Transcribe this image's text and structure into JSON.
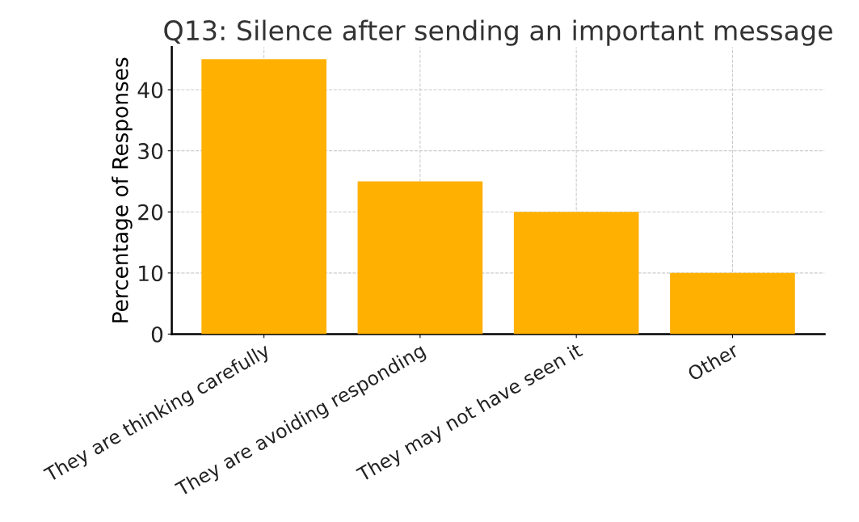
{
  "chart_data": {
    "type": "bar",
    "title": "Q13: Silence after sending an important message",
    "ylabel": "Percentage of Responses",
    "categories": [
      "They are thinking carefully",
      "They are avoiding responding",
      "They may not have seen it",
      "Other"
    ],
    "values": [
      45,
      25,
      20,
      10
    ],
    "color": "#ffb000",
    "ylim": [
      0,
      47
    ],
    "yticks": [
      0,
      10,
      20,
      30,
      40
    ],
    "grid": true
  }
}
